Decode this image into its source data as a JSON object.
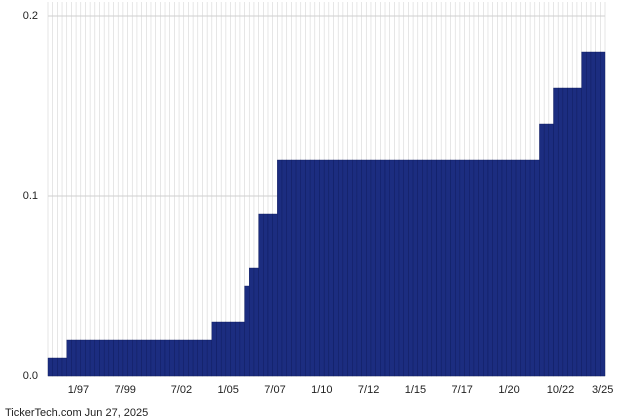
{
  "chart_data": {
    "type": "bar",
    "footer": "TickerTech.com  Jun 27, 2025",
    "categories": [
      null,
      null,
      null,
      null,
      null,
      null,
      "1/97",
      null,
      null,
      null,
      null,
      null,
      null,
      null,
      null,
      null,
      "7/99",
      null,
      null,
      null,
      null,
      null,
      null,
      null,
      null,
      null,
      null,
      null,
      "7/02",
      null,
      null,
      null,
      null,
      null,
      null,
      null,
      null,
      null,
      "1/05",
      null,
      null,
      null,
      null,
      null,
      null,
      null,
      null,
      null,
      "7/07",
      null,
      null,
      null,
      null,
      null,
      null,
      null,
      null,
      null,
      "1/10",
      null,
      null,
      null,
      null,
      null,
      null,
      null,
      null,
      null,
      "7/12",
      null,
      null,
      null,
      null,
      null,
      null,
      null,
      null,
      null,
      "1/15",
      null,
      null,
      null,
      null,
      null,
      null,
      null,
      null,
      null,
      "7/17",
      null,
      null,
      null,
      null,
      null,
      null,
      null,
      null,
      null,
      "1/20",
      null,
      null,
      null,
      null,
      null,
      null,
      null,
      null,
      null,
      null,
      "10/22",
      null,
      null,
      null,
      null,
      null,
      null,
      null,
      null,
      "3/25"
    ],
    "values": [
      0.01,
      0.01,
      0.01,
      0.01,
      0.02,
      0.02,
      0.02,
      0.02,
      0.02,
      0.02,
      0.02,
      0.02,
      0.02,
      0.02,
      0.02,
      0.02,
      0.02,
      0.02,
      0.02,
      0.02,
      0.02,
      0.02,
      0.02,
      0.02,
      0.02,
      0.02,
      0.02,
      0.02,
      0.02,
      0.02,
      0.02,
      0.02,
      0.02,
      0.02,
      0.02,
      0.03,
      0.03,
      0.03,
      0.03,
      0.03,
      0.03,
      0.03,
      0.05,
      0.06,
      0.06,
      0.09,
      0.09,
      0.09,
      0.09,
      0.12,
      0.12,
      0.12,
      0.12,
      0.12,
      0.12,
      0.12,
      0.12,
      0.12,
      0.12,
      0.12,
      0.12,
      0.12,
      0.12,
      0.12,
      0.12,
      0.12,
      0.12,
      0.12,
      0.12,
      0.12,
      0.12,
      0.12,
      0.12,
      0.12,
      0.12,
      0.12,
      0.12,
      0.12,
      0.12,
      0.12,
      0.12,
      0.12,
      0.12,
      0.12,
      0.12,
      0.12,
      0.12,
      0.12,
      0.12,
      0.12,
      0.12,
      0.12,
      0.12,
      0.12,
      0.12,
      0.12,
      0.12,
      0.12,
      0.12,
      0.12,
      0.12,
      0.12,
      0.12,
      0.12,
      0.12,
      0.14,
      0.14,
      0.14,
      0.16,
      0.16,
      0.16,
      0.16,
      0.16,
      0.16,
      0.18,
      0.18,
      0.18,
      0.18,
      0.18
    ],
    "color": "#1c2d80",
    "ylim": [
      0,
      0.2
    ],
    "yticks": [
      {
        "value": 0,
        "label": "0.0"
      },
      0.1,
      0.2
    ],
    "grid": true
  }
}
